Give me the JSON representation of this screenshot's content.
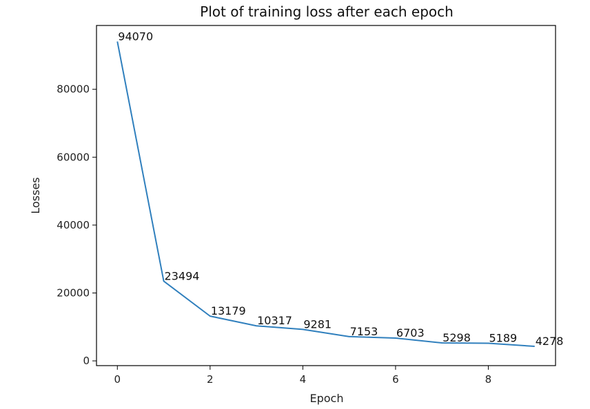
{
  "colors": {
    "line": "#2f7fbd",
    "axis": "#000000",
    "text": "#111111"
  },
  "chart_data": {
    "type": "line",
    "title": "Plot of training loss after each epoch",
    "xlabel": "Epoch",
    "ylabel": "Losses",
    "grid": false,
    "xlim": [
      -0.45,
      9.45
    ],
    "ylim": [
      -1400,
      98800
    ],
    "xticks": [
      0,
      2,
      4,
      6,
      8
    ],
    "yticks": [
      0,
      20000,
      40000,
      60000,
      80000
    ],
    "x": [
      0,
      1,
      2,
      3,
      4,
      5,
      6,
      7,
      8,
      9
    ],
    "y": [
      94070,
      23494,
      13179,
      10317,
      9281,
      7153,
      6703,
      5298,
      5189,
      4278
    ],
    "data_labels": [
      "94070",
      "23494",
      "13179",
      "10317",
      "9281",
      "7153",
      "6703",
      "5298",
      "5189",
      "4278"
    ],
    "xtick_labels": [
      "0",
      "2",
      "4",
      "6",
      "8"
    ],
    "ytick_labels": [
      "0",
      "20000",
      "40000",
      "60000",
      "80000"
    ]
  }
}
